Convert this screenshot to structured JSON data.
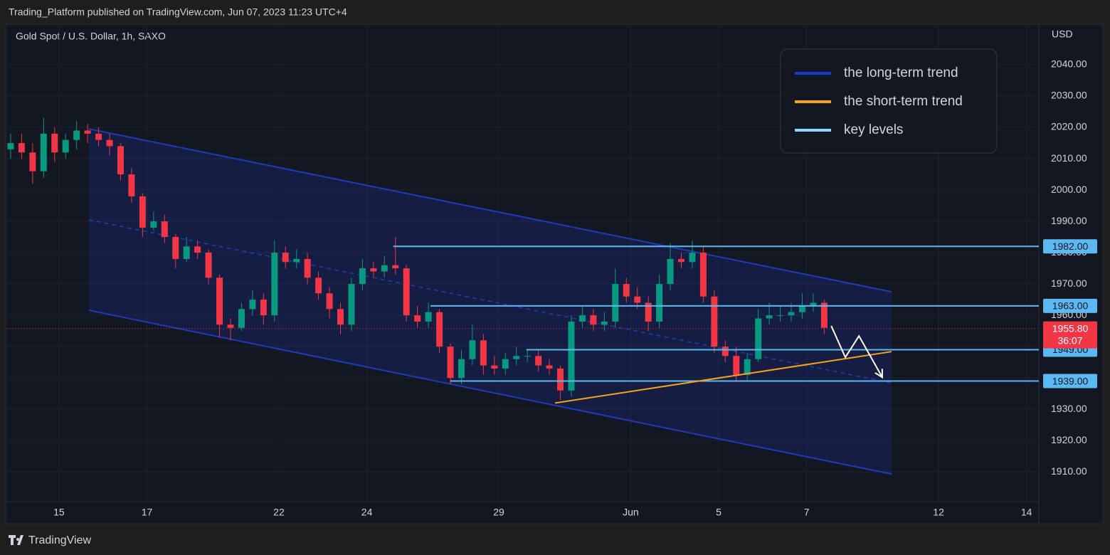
{
  "chart_data": {
    "type": "candlestick",
    "header": "Trading_Platform published on TradingView.com, Jun 07, 2023 11:23 UTC+4",
    "title": "Gold Spot / U.S. Dollar, 1h, SAXO",
    "currency": "USD",
    "footer": "TradingView",
    "up_color": "#089981",
    "down_color": "#f23645",
    "grid": true,
    "xlim": [
      -1.18,
      22.28
    ],
    "ylim": [
      1900.5,
      2052.5
    ],
    "xticks": [
      {
        "value": 0,
        "label": "15"
      },
      {
        "value": 2,
        "label": "17"
      },
      {
        "value": 5,
        "label": "22"
      },
      {
        "value": 7,
        "label": "24"
      },
      {
        "value": 10,
        "label": "29"
      },
      {
        "value": 13,
        "label": "Jun"
      },
      {
        "value": 15,
        "label": "5"
      },
      {
        "value": 17,
        "label": "7"
      },
      {
        "value": 20,
        "label": "12"
      },
      {
        "value": 22,
        "label": "14"
      }
    ],
    "yticks": [
      {
        "value": 1910,
        "label": "1910.00"
      },
      {
        "value": 1920,
        "label": "1920.00"
      },
      {
        "value": 1930,
        "label": "1930.00"
      },
      {
        "value": 1940,
        "label": "1940.00"
      },
      {
        "value": 1950,
        "label": "1950.00"
      },
      {
        "value": 1960,
        "label": "1960.00"
      },
      {
        "value": 1970,
        "label": "1970.00"
      },
      {
        "value": 1980,
        "label": "1980.00"
      },
      {
        "value": 1990,
        "label": "1990.00"
      },
      {
        "value": 2000,
        "label": "2000.00"
      },
      {
        "value": 2010,
        "label": "2010.00"
      },
      {
        "value": 2020,
        "label": "2020.00"
      },
      {
        "value": 2030,
        "label": "2030.00"
      },
      {
        "value": 2040,
        "label": "2040.00"
      }
    ],
    "x": [
      -1.1,
      -0.85,
      -0.6,
      -0.35,
      -0.1,
      0.15,
      0.4,
      0.65,
      0.9,
      1.15,
      1.4,
      1.65,
      1.9,
      2.15,
      2.4,
      2.65,
      2.9,
      3.15,
      3.4,
      3.65,
      3.9,
      4.15,
      4.4,
      4.65,
      4.9,
      5.15,
      5.4,
      5.65,
      5.9,
      6.15,
      6.4,
      6.65,
      6.9,
      7.15,
      7.4,
      7.65,
      7.9,
      8.15,
      8.4,
      8.65,
      8.9,
      9.15,
      9.4,
      9.65,
      9.9,
      10.15,
      10.4,
      10.65,
      10.9,
      11.15,
      11.4,
      11.65,
      11.9,
      12.15,
      12.4,
      12.65,
      12.9,
      13.15,
      13.4,
      13.65,
      13.9,
      14.15,
      14.4,
      14.65,
      14.9,
      15.15,
      15.4,
      15.65,
      15.9,
      16.15,
      16.4,
      16.65,
      16.9,
      17.15,
      17.4
    ],
    "open": [
      2013,
      2015,
      2012,
      2006,
      2018,
      2012,
      2016,
      2019,
      2018,
      2016,
      2014,
      2005,
      1998,
      1988,
      1990,
      1985,
      1978,
      1982,
      1980,
      1972,
      1957,
      1956,
      1962,
      1965,
      1960,
      1980,
      1977,
      1978,
      1972,
      1967,
      1962,
      1957,
      1970,
      1975,
      1974,
      1976,
      1975,
      1960,
      1958,
      1961,
      1950,
      1940,
      1946,
      1952,
      1944,
      1943,
      1946,
      1947,
      1947,
      1944,
      1943,
      1936,
      1958,
      1960,
      1957,
      1958,
      1970,
      1966,
      1964,
      1958,
      1970,
      1978,
      1977,
      1980,
      1966,
      1950,
      1947,
      1941,
      1946,
      1959,
      1960,
      1960,
      1961,
      1963,
      1964
    ],
    "high": [
      2018,
      2018,
      2015,
      2023,
      2020,
      2018,
      2022,
      2021,
      2020,
      2018,
      2015,
      2007,
      1999,
      1993,
      1992,
      1986,
      1985,
      1984,
      1981,
      1973,
      1959,
      1964,
      1968,
      1967,
      1984,
      1982,
      1981,
      1980,
      1974,
      1969,
      1964,
      1972,
      1978,
      1977,
      1979,
      1985,
      1976,
      1963,
      1964,
      1962,
      1951,
      1949,
      1957,
      1954,
      1947,
      1948,
      1950,
      1949,
      1949,
      1946,
      1944,
      1960,
      1963,
      1962,
      1961,
      1975,
      1972,
      1969,
      1966,
      1973,
      1983,
      1980,
      1984,
      1982,
      1968,
      1952,
      1950,
      1948,
      1962,
      1964,
      1963,
      1964,
      1967,
      1967,
      1965
    ],
    "low": [
      2010,
      2010,
      2002,
      2004,
      2009,
      2010,
      2013,
      2015,
      2014,
      2011,
      2003,
      1996,
      1985,
      1987,
      1983,
      1975,
      1977,
      1978,
      1970,
      1953,
      1952,
      1955,
      1960,
      1957,
      1958,
      1975,
      1975,
      1970,
      1965,
      1959,
      1954,
      1955,
      1968,
      1972,
      1972,
      1973,
      1958,
      1956,
      1956,
      1948,
      1938,
      1938,
      1944,
      1941,
      1941,
      1941,
      1944,
      1945,
      1942,
      1941,
      1933,
      1934,
      1956,
      1955,
      1955,
      1956,
      1964,
      1962,
      1955,
      1956,
      1968,
      1975,
      1975,
      1964,
      1948,
      1945,
      1939,
      1939,
      1945,
      1957,
      1958,
      1958,
      1959,
      1961,
      1954
    ],
    "close": [
      2015,
      2012,
      2006,
      2018,
      2012,
      2016,
      2019,
      2018,
      2016,
      2014,
      2005,
      1998,
      1988,
      1990,
      1985,
      1978,
      1982,
      1980,
      1972,
      1957,
      1956,
      1962,
      1965,
      1960,
      1980,
      1977,
      1978,
      1972,
      1967,
      1962,
      1957,
      1970,
      1975,
      1974,
      1976,
      1975,
      1960,
      1958,
      1961,
      1950,
      1940,
      1946,
      1952,
      1944,
      1943,
      1946,
      1947,
      1947,
      1944,
      1943,
      1936,
      1958,
      1960,
      1957,
      1958,
      1970,
      1966,
      1964,
      1958,
      1970,
      1978,
      1977,
      1980,
      1966,
      1950,
      1947,
      1941,
      1946,
      1959,
      1960,
      1960,
      1961,
      1963,
      1964,
      1956
    ],
    "channel": {
      "color": "#1e3bb8",
      "upper": {
        "x": [
          0.68,
          18.93
        ],
        "y": [
          2019.5,
          1967.5
        ]
      },
      "middle": {
        "x": [
          0.68,
          18.93
        ],
        "y": [
          1990.5,
          1938.4
        ]
      },
      "lower": {
        "x": [
          0.68,
          18.93
        ],
        "y": [
          1961.6,
          1909.3
        ]
      }
    },
    "key_level_color": "#5cb8f0",
    "key_levels": [
      {
        "value": 1982,
        "x_start": 7.6,
        "label": "1982.00"
      },
      {
        "value": 1963,
        "x_start": 8.45,
        "label": "1963.00"
      },
      {
        "value": 1949,
        "x_start": 10.63,
        "label": "1949.00"
      },
      {
        "value": 1939,
        "x_start": 8.9,
        "label": "1939.00"
      }
    ],
    "short_trend": {
      "color": "#f7a21b",
      "x": [
        11.28,
        18.93
      ],
      "y": [
        1932.0,
        1948.4
      ]
    },
    "projection": {
      "color": "#ffffff",
      "x": [
        17.56,
        17.88,
        18.19,
        18.72
      ],
      "y": [
        1956.6,
        1946.6,
        1953.4,
        1940.2
      ]
    },
    "last_price": {
      "value": 1955.8,
      "label": "1955.80",
      "countdown": "36:07",
      "color": "#f23645"
    },
    "legend": [
      {
        "name": "the long-term trend",
        "color": "#1a3ad8"
      },
      {
        "name": "the short-term trend",
        "color": "#f7a21b"
      },
      {
        "name": "key levels",
        "color": "#8fd8f5"
      }
    ]
  }
}
